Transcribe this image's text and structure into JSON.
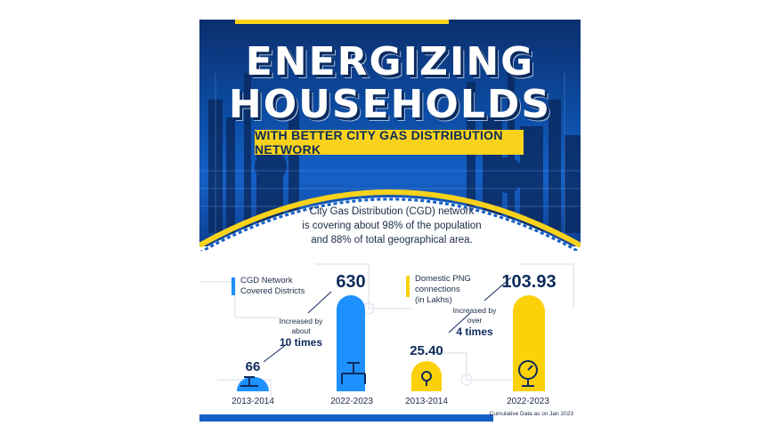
{
  "title_line1": "ENERGIZING",
  "title_line2": "HOUSEHOLDS",
  "subtitle": "WITH BETTER CITY GAS DISTRIBUTION NETWORK",
  "intro": [
    "City Gas Distribution (CGD) network",
    "is covering about 98% of the population",
    "and 88% of total geographical area."
  ],
  "colors": {
    "blue": "#1e90ff",
    "yellow": "#fbd20a",
    "navy": "#0d2b5c"
  },
  "chart_data": [
    {
      "type": "bar",
      "legend": [
        "CGD Network",
        "Covered  Districts"
      ],
      "categories": [
        "2013-2014",
        "2022-2023"
      ],
      "values": [
        66,
        630
      ],
      "value_labels": [
        "66",
        "630"
      ],
      "annotation": {
        "line1": "Increased by",
        "line2": "about",
        "emphasis": "10 times"
      },
      "icon": "pipeline-valve-icon"
    },
    {
      "type": "bar",
      "legend": [
        "Domestic PNG",
        "connections",
        "(in Lakhs)"
      ],
      "categories": [
        "2013-2014",
        "2022-2023"
      ],
      "values": [
        25.4,
        103.93
      ],
      "value_labels": [
        "25.40",
        "103.93"
      ],
      "annotation": {
        "line1": "Increased by",
        "line2": "over",
        "emphasis": "4 times"
      },
      "icon": "gas-meter-icon"
    }
  ],
  "footnote": "Cumulative Data as on Jan 2023"
}
